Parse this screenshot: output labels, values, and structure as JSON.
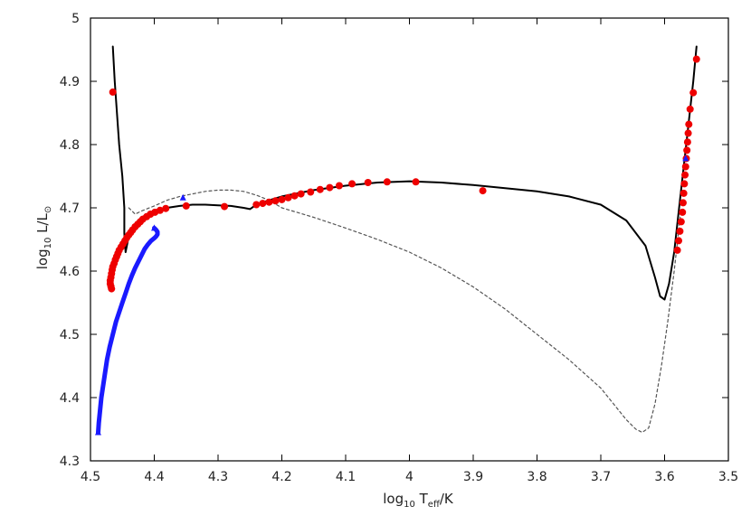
{
  "chart_data": {
    "type": "line",
    "title": "",
    "xlabel": {
      "main": "log",
      "sub": "10",
      "rest": " T",
      "sub2": "eff",
      "tail": "/K"
    },
    "ylabel": {
      "main": "log",
      "sub": "10",
      "rest": " L/L",
      "sub2": "⊙"
    },
    "xlim": [
      4.5,
      3.5
    ],
    "ylim": [
      4.3,
      5.0
    ],
    "x_ticks": [
      "4.5",
      "4.4",
      "4.3",
      "4.2",
      "4.1",
      "4",
      "3.9",
      "3.8",
      "3.7",
      "3.6",
      "3.5"
    ],
    "y_ticks": [
      "4.3",
      "4.4",
      "4.5",
      "4.6",
      "4.7",
      "4.8",
      "4.9",
      "5"
    ],
    "x_tick_values": [
      4.5,
      4.4,
      4.3,
      4.2,
      4.1,
      4.0,
      3.9,
      3.8,
      3.7,
      3.6,
      3.5
    ],
    "y_tick_values": [
      4.3,
      4.4,
      4.5,
      4.6,
      4.7,
      4.8,
      4.9,
      5.0
    ],
    "grid": false,
    "legend": "none",
    "colors": {
      "solid": "#000000",
      "dashed": "#555555",
      "blue": "#1a1aff",
      "red": "#ee0000"
    },
    "series": [
      {
        "style": "solid",
        "x": [
          4.465,
          4.462,
          4.455,
          4.45,
          4.447,
          4.447,
          4.445,
          4.44,
          4.43,
          4.42,
          4.4,
          4.38,
          4.36,
          4.34,
          4.32,
          4.3,
          4.28,
          4.26,
          4.25,
          4.24,
          4.22,
          4.2,
          4.15,
          4.1,
          4.05,
          4.0,
          3.95,
          3.9,
          3.85,
          3.8,
          3.75,
          3.7,
          3.66,
          3.63,
          3.615,
          3.607,
          3.6,
          3.593,
          3.585,
          3.575,
          3.565,
          3.555,
          3.55
        ],
        "y": [
          4.955,
          4.9,
          4.8,
          4.75,
          4.7,
          4.66,
          4.63,
          4.655,
          4.675,
          4.685,
          4.695,
          4.7,
          4.703,
          4.705,
          4.705,
          4.704,
          4.703,
          4.7,
          4.698,
          4.705,
          4.712,
          4.718,
          4.728,
          4.735,
          4.74,
          4.742,
          4.74,
          4.736,
          4.731,
          4.726,
          4.718,
          4.705,
          4.68,
          4.64,
          4.59,
          4.56,
          4.555,
          4.58,
          4.63,
          4.72,
          4.81,
          4.9,
          4.955
        ]
      },
      {
        "style": "dashed",
        "x": [
          4.44,
          4.43,
          4.42,
          4.4,
          4.38,
          4.36,
          4.34,
          4.32,
          4.3,
          4.28,
          4.26,
          4.24,
          4.22,
          4.2,
          4.15,
          4.1,
          4.05,
          4.0,
          3.95,
          3.9,
          3.85,
          3.8,
          3.75,
          3.7,
          3.68,
          3.66,
          3.645,
          3.635,
          3.625,
          3.615,
          3.605,
          3.595,
          3.585,
          3.575
        ],
        "y": [
          4.7,
          4.69,
          4.695,
          4.703,
          4.712,
          4.718,
          4.722,
          4.726,
          4.728,
          4.728,
          4.726,
          4.72,
          4.712,
          4.7,
          4.685,
          4.668,
          4.65,
          4.63,
          4.605,
          4.575,
          4.54,
          4.5,
          4.46,
          4.415,
          4.39,
          4.365,
          4.35,
          4.345,
          4.352,
          4.39,
          4.45,
          4.52,
          4.6,
          4.69
        ]
      },
      {
        "style": "blue",
        "x": [
          4.488,
          4.487,
          4.485,
          4.483,
          4.48,
          4.477,
          4.474,
          4.47,
          4.465,
          4.46,
          4.455,
          4.45,
          4.445,
          4.44,
          4.435,
          4.43,
          4.425,
          4.42,
          4.415,
          4.41,
          4.405,
          4.4,
          4.397,
          4.395,
          4.395,
          4.397,
          4.4
        ],
        "y": [
          4.345,
          4.36,
          4.38,
          4.4,
          4.42,
          4.44,
          4.46,
          4.48,
          4.5,
          4.52,
          4.535,
          4.55,
          4.565,
          4.58,
          4.593,
          4.605,
          4.615,
          4.625,
          4.635,
          4.642,
          4.648,
          4.652,
          4.655,
          4.658,
          4.662,
          4.665,
          4.668
        ]
      }
    ],
    "red_points": {
      "x": [
        4.465,
        4.467,
        4.468,
        4.469,
        4.469,
        4.468,
        4.467,
        4.466,
        4.465,
        4.463,
        4.461,
        4.459,
        4.457,
        4.455,
        4.452,
        4.449,
        4.446,
        4.443,
        4.44,
        4.437,
        4.434,
        4.43,
        4.426,
        4.422,
        4.418,
        4.412,
        4.406,
        4.399,
        4.391,
        4.382,
        4.35,
        4.29,
        4.24,
        4.23,
        4.22,
        4.21,
        4.2,
        4.19,
        4.18,
        4.17,
        4.155,
        4.14,
        4.125,
        4.11,
        4.09,
        4.065,
        4.035,
        3.99,
        3.885,
        3.58,
        3.578,
        3.576,
        3.574,
        3.572,
        3.571,
        3.57,
        3.569,
        3.568,
        3.567,
        3.566,
        3.565,
        3.564,
        3.563,
        3.562,
        3.56,
        3.555,
        3.55
      ],
      "y": [
        4.883,
        4.572,
        4.576,
        4.58,
        4.585,
        4.59,
        4.596,
        4.602,
        4.607,
        4.612,
        4.618,
        4.623,
        4.628,
        4.633,
        4.638,
        4.643,
        4.648,
        4.653,
        4.657,
        4.661,
        4.665,
        4.67,
        4.674,
        4.678,
        4.682,
        4.686,
        4.69,
        4.693,
        4.696,
        4.699,
        4.703,
        4.702,
        4.705,
        4.707,
        4.709,
        4.711,
        4.713,
        4.716,
        4.719,
        4.722,
        4.725,
        4.729,
        4.732,
        4.735,
        4.738,
        4.74,
        4.741,
        4.741,
        4.727,
        4.633,
        4.648,
        4.663,
        4.678,
        4.693,
        4.708,
        4.723,
        4.738,
        4.752,
        4.765,
        4.778,
        4.791,
        4.804,
        4.818,
        4.832,
        4.856,
        4.882,
        4.935
      ]
    },
    "blue_triangles": {
      "x": [
        4.488,
        4.4,
        4.355,
        3.567
      ],
      "y": [
        4.345,
        4.668,
        4.716,
        4.778
      ]
    }
  }
}
